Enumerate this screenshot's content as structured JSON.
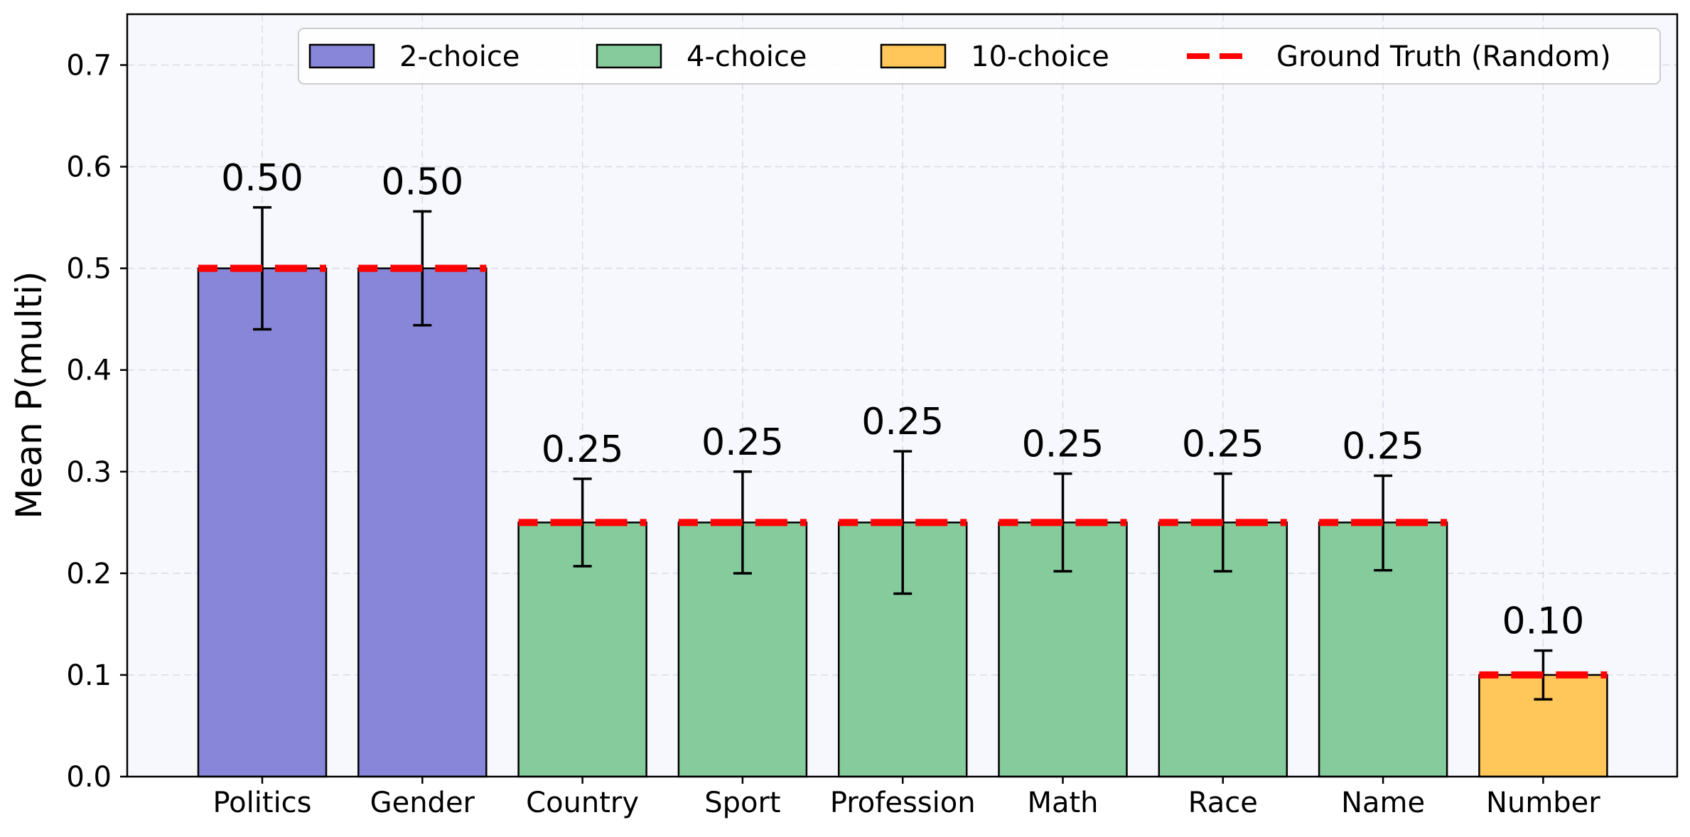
{
  "chart_data": {
    "type": "bar",
    "ylabel": "Mean P(multi)",
    "xlabel": "",
    "title": "",
    "ylim": [
      0.0,
      0.75
    ],
    "yticks": [
      "0.0",
      "0.1",
      "0.2",
      "0.3",
      "0.4",
      "0.5",
      "0.6",
      "0.7"
    ],
    "grid": true,
    "legend_position": "top-right",
    "categories": [
      "Politics",
      "Gender",
      "Country",
      "Sport",
      "Profession",
      "Math",
      "Race",
      "Name",
      "Number"
    ],
    "values": [
      0.5,
      0.5,
      0.25,
      0.25,
      0.25,
      0.25,
      0.25,
      0.25,
      0.1
    ],
    "value_labels": [
      "0.50",
      "0.50",
      "0.25",
      "0.25",
      "0.25",
      "0.25",
      "0.25",
      "0.25",
      "0.10"
    ],
    "error_low": [
      0.44,
      0.444,
      0.207,
      0.2,
      0.18,
      0.202,
      0.202,
      0.203,
      0.076
    ],
    "error_high": [
      0.56,
      0.556,
      0.293,
      0.3,
      0.32,
      0.298,
      0.298,
      0.296,
      0.124
    ],
    "groups": [
      "2-choice",
      "2-choice",
      "4-choice",
      "4-choice",
      "4-choice",
      "4-choice",
      "4-choice",
      "4-choice",
      "10-choice"
    ],
    "ground_truth": [
      0.5,
      0.5,
      0.25,
      0.25,
      0.25,
      0.25,
      0.25,
      0.25,
      0.1
    ],
    "legend": [
      {
        "label": "2-choice",
        "kind": "patch",
        "color": "#8886d8"
      },
      {
        "label": "4-choice",
        "kind": "patch",
        "color": "#86cb9c"
      },
      {
        "label": "10-choice",
        "kind": "patch",
        "color": "#ffc65a"
      },
      {
        "label": "Ground Truth (Random)",
        "kind": "dashed-line",
        "color": "#ff0000"
      }
    ],
    "colors": {
      "2-choice": "#8886d8",
      "4-choice": "#86cb9c",
      "10-choice": "#ffc65a",
      "ground_truth": "#ff0000",
      "plot_background": "#f7f8fd"
    }
  }
}
